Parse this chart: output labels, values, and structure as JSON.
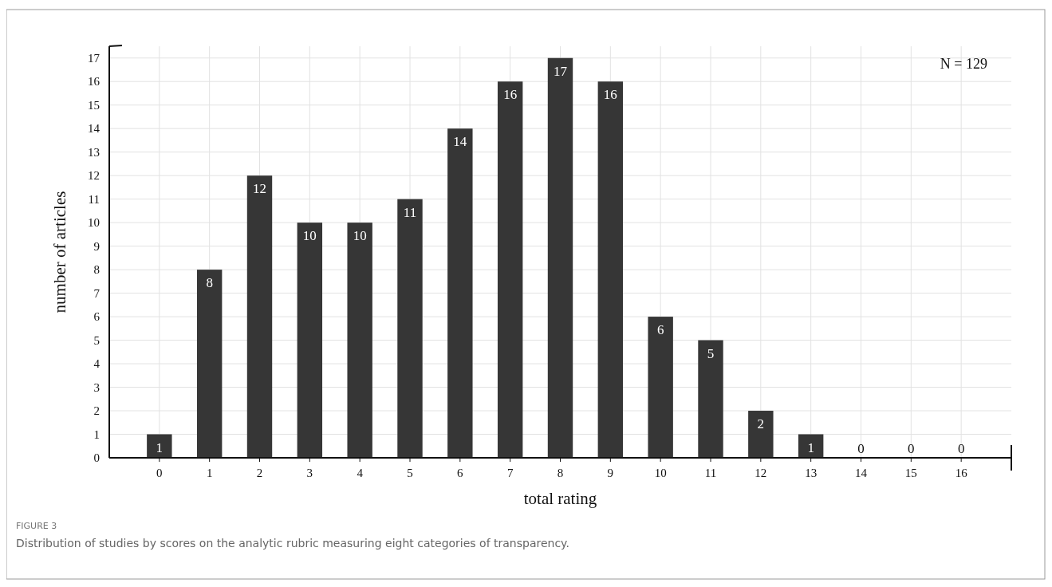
{
  "chart_data": {
    "type": "bar",
    "xlabel": "total rating",
    "ylabel": "number of articles",
    "categories": [
      "0",
      "1",
      "2",
      "3",
      "4",
      "5",
      "6",
      "7",
      "8",
      "9",
      "10",
      "11",
      "12",
      "13",
      "14",
      "15",
      "16"
    ],
    "values": [
      1,
      8,
      12,
      10,
      10,
      11,
      14,
      16,
      17,
      16,
      6,
      5,
      2,
      1,
      0,
      0,
      0
    ],
    "color": "#363636",
    "data_labels": true,
    "grid": true,
    "ylim": [
      0,
      17.5
    ],
    "yticks": [
      0,
      1,
      2,
      3,
      4,
      5,
      6,
      7,
      8,
      9,
      10,
      11,
      12,
      13,
      14,
      15,
      16,
      17
    ],
    "annotations": [
      "N = 129",
      "FIGURE 3",
      "Distribution of studies by scores on the analytic rubric measuring eight categories of transparency."
    ]
  }
}
